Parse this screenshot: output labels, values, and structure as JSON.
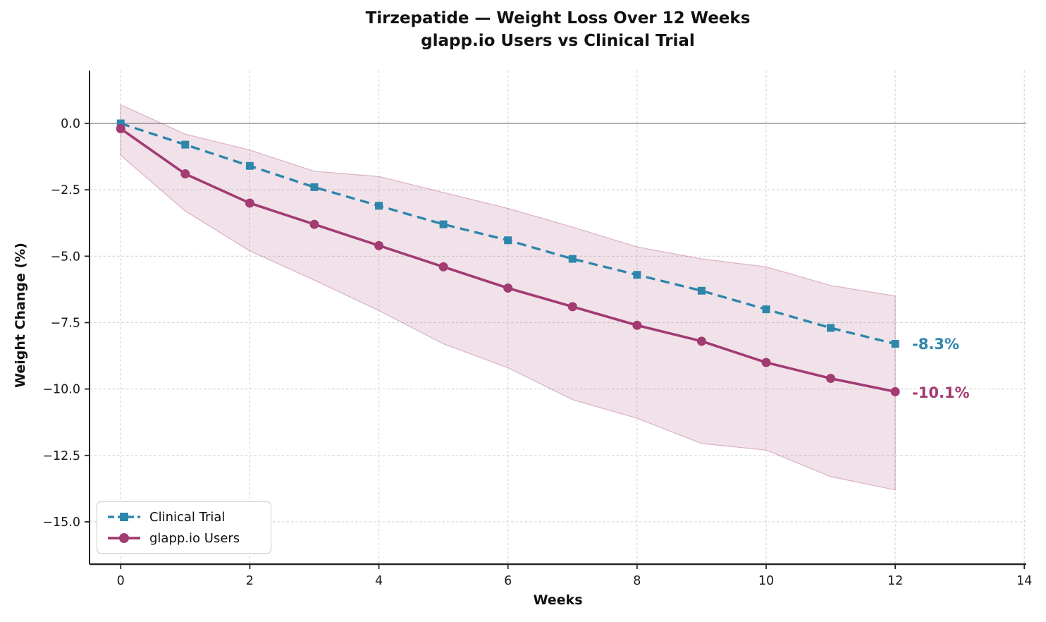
{
  "title": {
    "line1": "Tirzepatide — Weight Loss Over 12 Weeks",
    "line2": "glapp.io Users vs Clinical Trial"
  },
  "axes": {
    "x_label": "Weeks",
    "y_label": "Weight Change (%)",
    "x_tick_labels": [
      "0",
      "2",
      "4",
      "6",
      "8",
      "10",
      "12",
      "14"
    ],
    "y_tick_labels": [
      "0.0",
      "−2.5",
      "−5.0",
      "−7.5",
      "−10.0",
      "−12.5",
      "−15.0"
    ]
  },
  "legend": {
    "items": [
      {
        "label": "Clinical Trial",
        "color": "#2E86AB",
        "line": "dashed",
        "marker": "square"
      },
      {
        "label": "glapp.io Users",
        "color": "#A23B72",
        "line": "solid",
        "marker": "circle"
      }
    ]
  },
  "annotations": {
    "clinical_end": "-8.3%",
    "glapp_end": "-10.1%"
  },
  "colors": {
    "clinical": "#2E86AB",
    "glapp": "#A23B72",
    "band_fill": "rgba(162,59,114,0.15)",
    "band_edge": "rgba(162,59,114,0.35)",
    "grid": "#d6d6d6",
    "zero_line": "#7f7f7f",
    "spine": "#262626",
    "tick_label": "#1a1a1a",
    "background": "#ffffff"
  },
  "chart_data": {
    "type": "line",
    "title": "Tirzepatide — Weight Loss Over 12 Weeks — glapp.io Users vs Clinical Trial",
    "xlabel": "Weeks",
    "ylabel": "Weight Change (%)",
    "x": [
      0,
      1,
      2,
      3,
      4,
      5,
      6,
      7,
      8,
      9,
      10,
      11,
      12
    ],
    "series": [
      {
        "name": "Clinical Trial",
        "color": "#2E86AB",
        "line": "dashed",
        "marker": "square",
        "values": [
          0.0,
          -0.8,
          -1.6,
          -2.4,
          -3.1,
          -3.8,
          -4.4,
          -5.1,
          -5.7,
          -6.3,
          -7.0,
          -7.7,
          -8.3
        ],
        "end_label": "-8.3%"
      },
      {
        "name": "glapp.io Users",
        "color": "#A23B72",
        "line": "solid",
        "marker": "circle",
        "values": [
          -0.2,
          -1.9,
          -3.0,
          -3.8,
          -4.6,
          -5.4,
          -6.2,
          -6.9,
          -7.6,
          -8.2,
          -9.0,
          -9.6,
          -10.1
        ],
        "band_upper": [
          0.7,
          -0.4,
          -1.0,
          -1.8,
          -2.0,
          -2.6,
          -3.2,
          -3.9,
          -4.65,
          -5.1,
          -5.4,
          -6.1,
          -6.5
        ],
        "band_lower": [
          -1.2,
          -3.3,
          -4.8,
          -5.9,
          -7.05,
          -8.3,
          -9.2,
          -10.4,
          -11.1,
          -12.05,
          -12.3,
          -13.3,
          -13.8
        ],
        "end_label": "-10.1%"
      }
    ],
    "xticks": [
      0,
      2,
      4,
      6,
      8,
      10,
      12,
      14
    ],
    "yticks": [
      0,
      -2.5,
      -5,
      -7.5,
      -10,
      -12.5,
      -15
    ],
    "xlim": [
      -0.483,
      14.03
    ],
    "ylim": [
      -16.594,
      1.991
    ],
    "grid": true,
    "legend_position": "lower left"
  }
}
